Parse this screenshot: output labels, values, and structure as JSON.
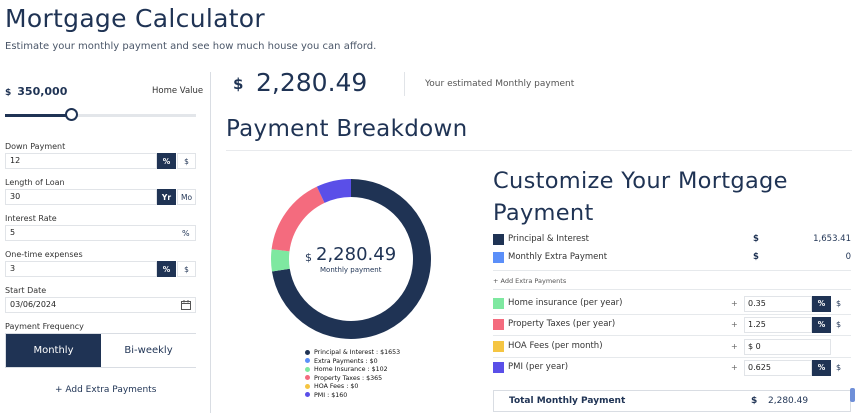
{
  "header": {
    "title": "Mortgage Calculator",
    "subtitle": "Estimate your monthly payment and see how much house you can afford."
  },
  "home_value": {
    "currency": "$",
    "amount": "350,000",
    "label": "Home Value",
    "slider_fraction": 0.35
  },
  "fields": {
    "down_payment": {
      "label": "Down Payment",
      "value": "12",
      "pct": "%",
      "dollar": "$"
    },
    "loan_length": {
      "label": "Length of Loan",
      "value": "30",
      "yr": "Yr",
      "mo": "Mo"
    },
    "interest_rate": {
      "label": "Interest Rate",
      "value": "5",
      "suffix": "%"
    },
    "one_time": {
      "label": "One-time expenses",
      "value": "3",
      "pct": "%",
      "dollar": "$"
    },
    "start_date": {
      "label": "Start Date",
      "value": "03/06/2024",
      "icon": "calendar-icon"
    },
    "frequency": {
      "label": "Payment Frequency",
      "monthly": "Monthly",
      "biweekly": "Bi-weekly"
    },
    "add_extra": "+ Add Extra Payments"
  },
  "estimate": {
    "currency": "$",
    "value": "2,280.49",
    "label": "Your estimated Monthly payment"
  },
  "breakdown": {
    "title": "Payment Breakdown",
    "donut_currency": "$",
    "donut_value": "2,280.49",
    "donut_sub": "Monthly payment"
  },
  "chart_data": {
    "type": "pie",
    "donut": true,
    "categories": [
      "Principal & Interest",
      "Extra Payments",
      "Home Insurance",
      "Property Taxes",
      "HOA Fees",
      "PMI"
    ],
    "values": [
      1653,
      0,
      102,
      365,
      0,
      160
    ],
    "colors": [
      "#1f3354",
      "#5b8ff9",
      "#7ee8a0",
      "#f46b7e",
      "#f5c542",
      "#5a4fe8"
    ],
    "legend": [
      "Principal & Interest : $1653",
      "Extra Payments : $0",
      "Home Insurance : $102",
      "Property Taxes : $365",
      "HOA Fees : $0",
      "PMI : $160"
    ]
  },
  "customize": {
    "title": "Customize Your Mortgage Payment",
    "principal": {
      "label": "Principal & Interest",
      "currency": "$",
      "value": "1,653.41"
    },
    "extra": {
      "label": "Monthly Extra Payment",
      "currency": "$",
      "value": "0"
    },
    "add_extra": "+ Add Extra Payments",
    "home_insurance": {
      "label": "Home insurance (per year)",
      "plus": "+",
      "value": "0.35",
      "pct": "%",
      "dollar": "$"
    },
    "property_taxes": {
      "label": "Property Taxes (per year)",
      "plus": "+",
      "value": "1.25",
      "pct": "%",
      "dollar": "$"
    },
    "hoa": {
      "label": "HOA Fees (per month)",
      "plus": "+",
      "value": "$  0"
    },
    "pmi": {
      "label": "PMI (per year)",
      "plus": "+",
      "value": "0.625",
      "pct": "%",
      "dollar": "$"
    },
    "total": {
      "label": "Total Monthly Payment",
      "currency": "$",
      "value": "2,280.49"
    }
  }
}
